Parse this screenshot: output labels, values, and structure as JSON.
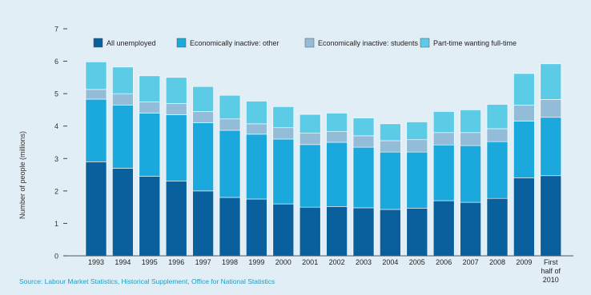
{
  "source": "Source: Labour Market Statistics, Historical Supplement, Office for National Statistics",
  "chart_data": {
    "type": "bar",
    "stacked": true,
    "title": "",
    "xlabel": "",
    "ylabel": "Number of people (millions)",
    "ylim": [
      0,
      7
    ],
    "yticks": [
      0,
      1,
      2,
      3,
      4,
      5,
      6,
      7
    ],
    "grid": false,
    "legend_position": "top",
    "categories": [
      "1993",
      "1994",
      "1995",
      "1996",
      "1997",
      "1998",
      "1999",
      "2000",
      "2001",
      "2002",
      "2003",
      "2004",
      "2005",
      "2006",
      "2007",
      "2008",
      "2009",
      "First half of 2010"
    ],
    "series": [
      {
        "name": "All unemployed",
        "color": "#0a5f9d",
        "values": [
          2.9,
          2.7,
          2.45,
          2.3,
          2.0,
          1.8,
          1.75,
          1.6,
          1.5,
          1.52,
          1.48,
          1.43,
          1.47,
          1.7,
          1.65,
          1.77,
          2.4,
          2.47
        ]
      },
      {
        "name": "Economically inactive: other",
        "color": "#1ba9dd",
        "values": [
          1.93,
          1.95,
          1.95,
          2.05,
          2.1,
          2.07,
          2.0,
          2.0,
          1.93,
          1.98,
          1.87,
          1.77,
          1.73,
          1.72,
          1.75,
          1.75,
          1.75,
          1.8
        ]
      },
      {
        "name": "Economically inactive: students",
        "color": "#93bcd9",
        "values": [
          0.3,
          0.35,
          0.35,
          0.35,
          0.35,
          0.35,
          0.32,
          0.35,
          0.35,
          0.33,
          0.35,
          0.35,
          0.38,
          0.38,
          0.4,
          0.4,
          0.5,
          0.55
        ]
      },
      {
        "name": "Part-time wanting full-time",
        "color": "#5ccbe6",
        "values": [
          0.85,
          0.82,
          0.8,
          0.8,
          0.77,
          0.73,
          0.7,
          0.65,
          0.58,
          0.57,
          0.55,
          0.52,
          0.55,
          0.65,
          0.7,
          0.75,
          0.97,
          1.1
        ]
      }
    ]
  }
}
